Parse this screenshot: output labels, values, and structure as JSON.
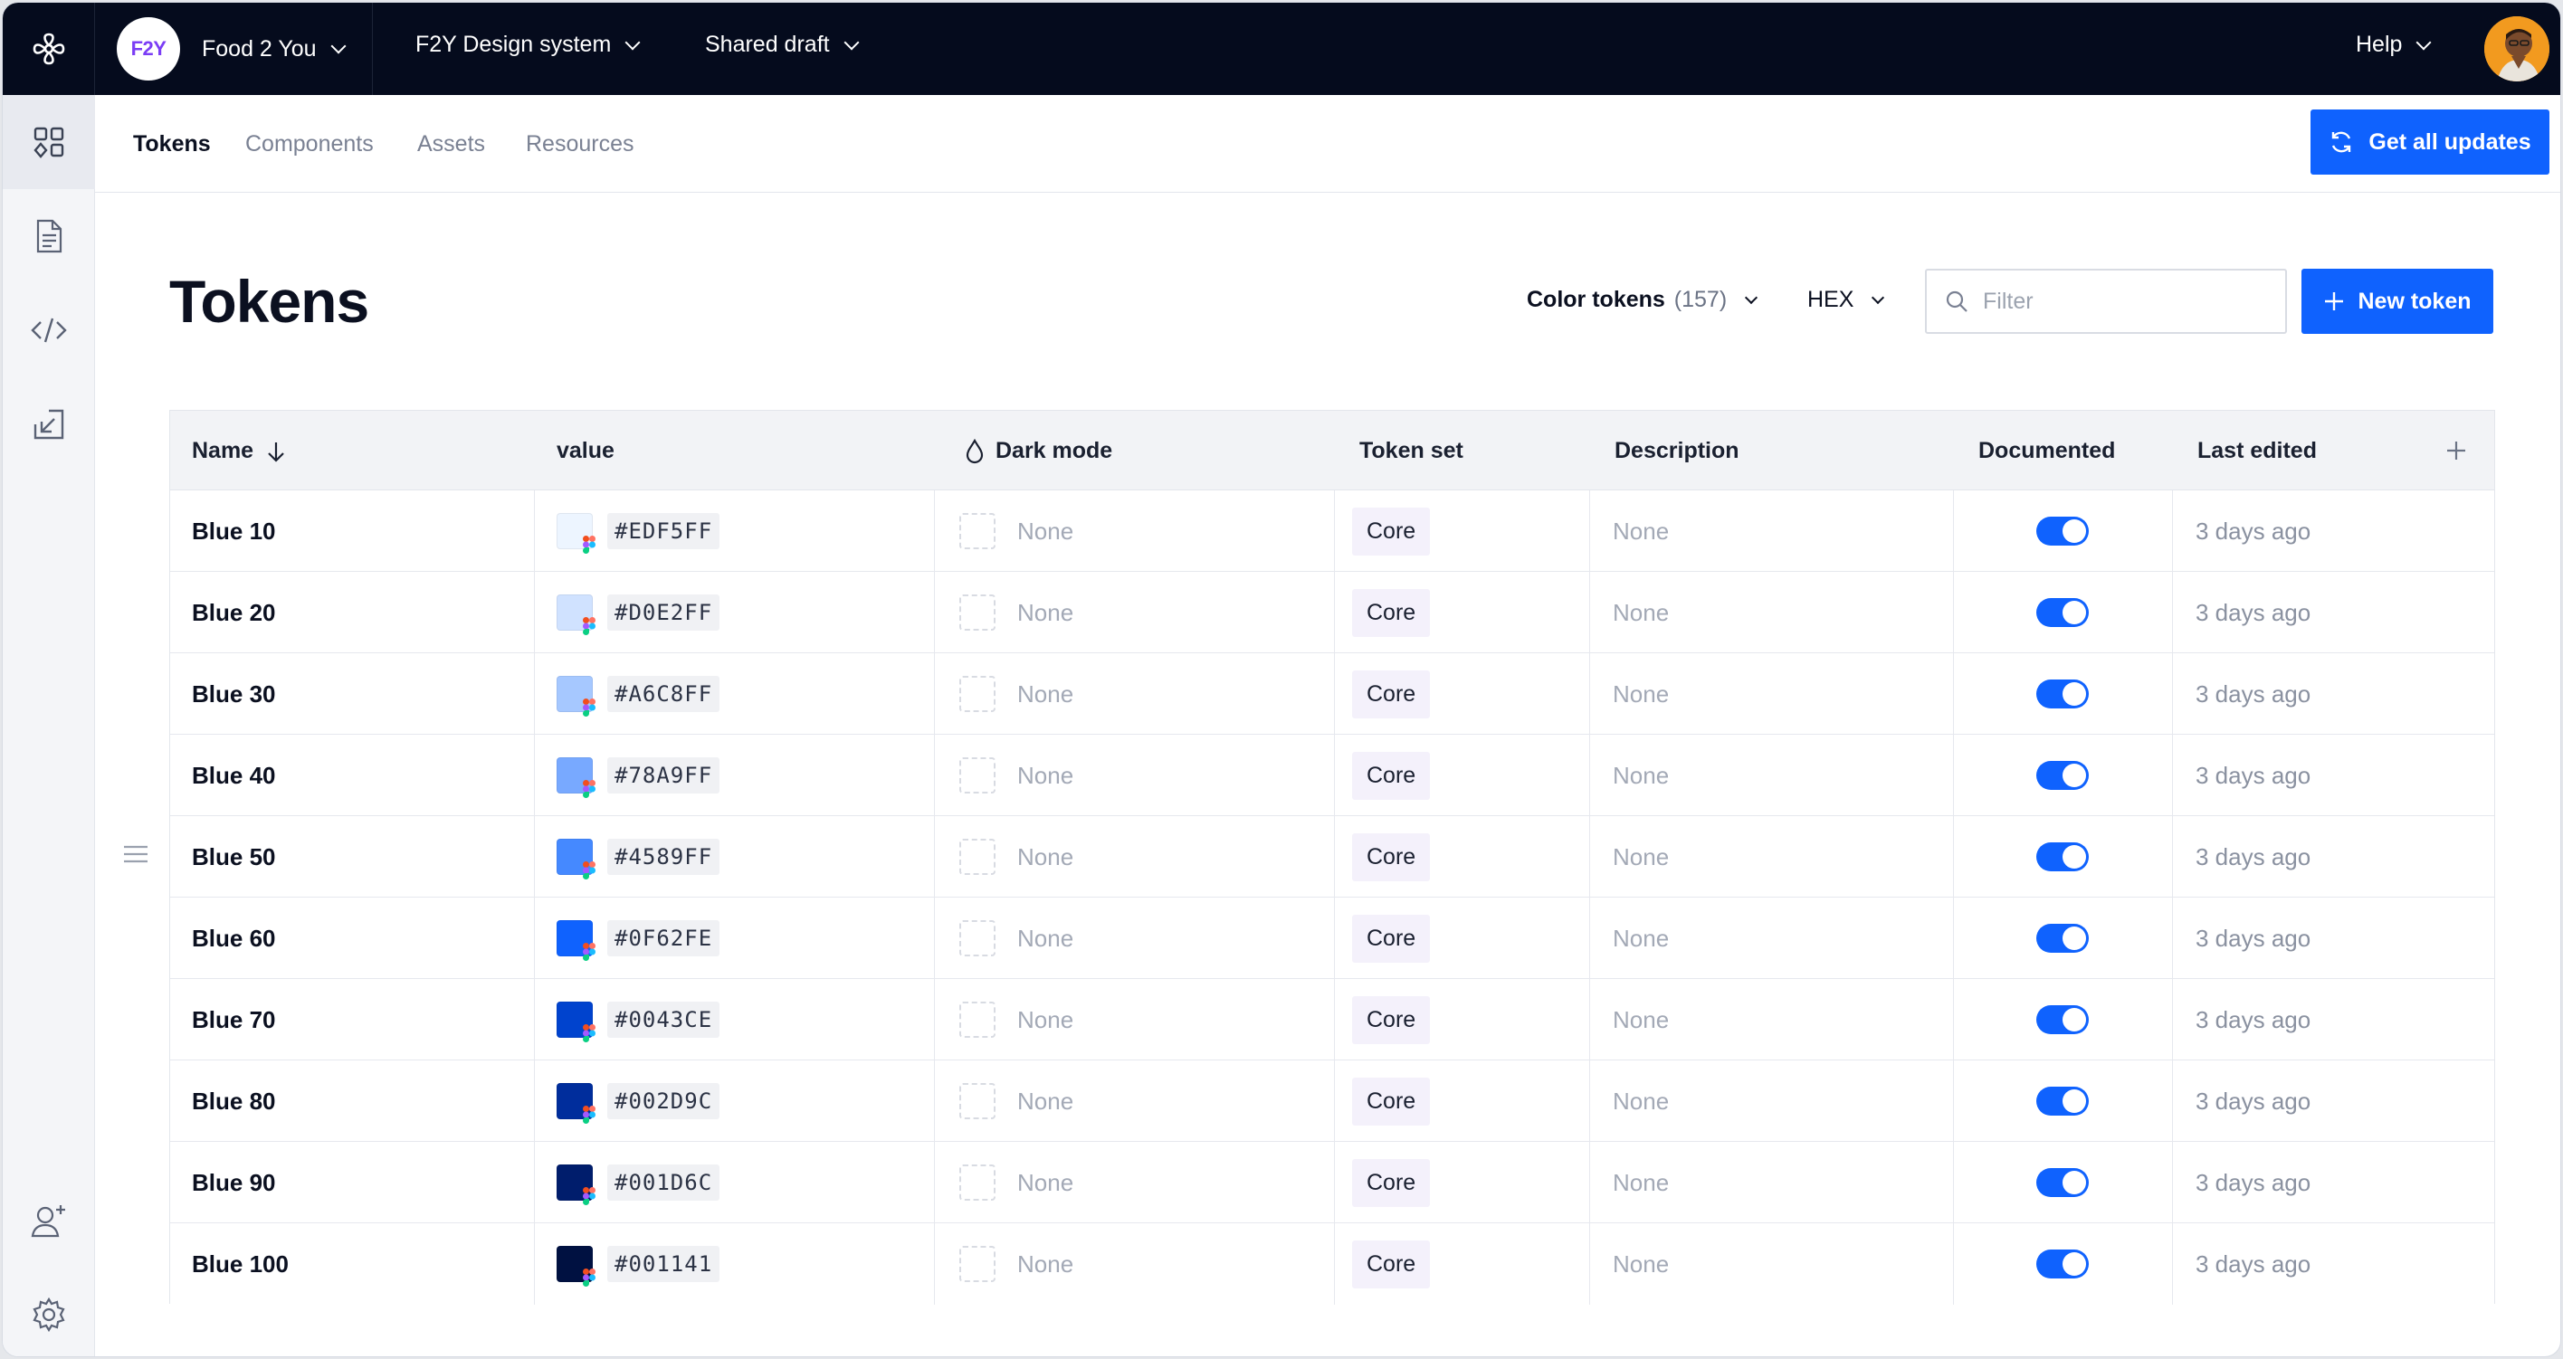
{
  "topbar": {
    "org_initials": "F2Y",
    "org_name": "Food 2 You",
    "design_system": "F2Y Design system",
    "draft": "Shared draft",
    "help": "Help"
  },
  "subnav": {
    "tabs": [
      {
        "label": "Tokens",
        "active": true
      },
      {
        "label": "Components",
        "active": false
      },
      {
        "label": "Assets",
        "active": false
      },
      {
        "label": "Resources",
        "active": false
      }
    ],
    "update_button": "Get all updates"
  },
  "page": {
    "title": "Tokens",
    "token_type": "Color tokens",
    "token_count": "(157)",
    "format": "HEX",
    "filter_placeholder": "Filter",
    "new_button": "New token"
  },
  "table": {
    "columns": [
      "Name",
      "value",
      "Dark mode",
      "Token set",
      "Description",
      "Documented",
      "Last edited"
    ],
    "rows": [
      {
        "name": "Blue 10",
        "hex": "#EDF5FF",
        "color": "#EDF5FF",
        "dark": "None",
        "set": "Core",
        "desc": "None",
        "documented": true,
        "edited": "3 days ago"
      },
      {
        "name": "Blue 20",
        "hex": "#D0E2FF",
        "color": "#D0E2FF",
        "dark": "None",
        "set": "Core",
        "desc": "None",
        "documented": true,
        "edited": "3 days ago"
      },
      {
        "name": "Blue 30",
        "hex": "#A6C8FF",
        "color": "#A6C8FF",
        "dark": "None",
        "set": "Core",
        "desc": "None",
        "documented": true,
        "edited": "3 days ago"
      },
      {
        "name": "Blue 40",
        "hex": "#78A9FF",
        "color": "#78A9FF",
        "dark": "None",
        "set": "Core",
        "desc": "None",
        "documented": true,
        "edited": "3 days ago"
      },
      {
        "name": "Blue 50",
        "hex": "#4589FF",
        "color": "#4589FF",
        "dark": "None",
        "set": "Core",
        "desc": "None",
        "documented": true,
        "edited": "3 days ago"
      },
      {
        "name": "Blue 60",
        "hex": "#0F62FE",
        "color": "#0F62FE",
        "dark": "None",
        "set": "Core",
        "desc": "None",
        "documented": true,
        "edited": "3 days ago"
      },
      {
        "name": "Blue 70",
        "hex": "#0043CE",
        "color": "#0043CE",
        "dark": "None",
        "set": "Core",
        "desc": "None",
        "documented": true,
        "edited": "3 days ago"
      },
      {
        "name": "Blue 80",
        "hex": "#002D9C",
        "color": "#002D9C",
        "dark": "None",
        "set": "Core",
        "desc": "None",
        "documented": true,
        "edited": "3 days ago"
      },
      {
        "name": "Blue 90",
        "hex": "#001D6C",
        "color": "#001D6C",
        "dark": "None",
        "set": "Core",
        "desc": "None",
        "documented": true,
        "edited": "3 days ago"
      },
      {
        "name": "Blue 100",
        "hex": "#001141",
        "color": "#001141",
        "dark": "None",
        "set": "Core",
        "desc": "None",
        "documented": true,
        "edited": "3 days ago"
      }
    ]
  },
  "colors": {
    "topbar_bg": "#050B1D",
    "accent": "#0F62FE"
  },
  "icons": {
    "app_logo": "flower-logo-icon",
    "rail": [
      "grid-icon",
      "document-icon",
      "code-icon",
      "import-icon",
      "add-user-icon",
      "gear-icon"
    ]
  }
}
